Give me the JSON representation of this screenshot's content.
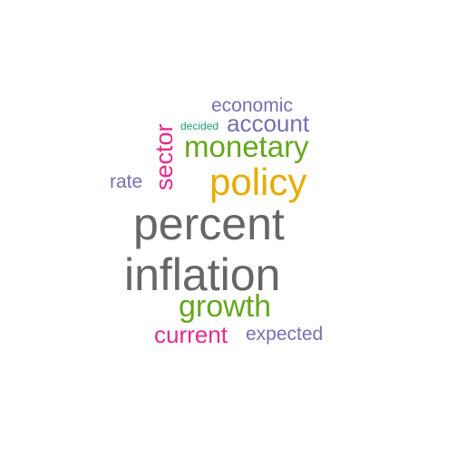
{
  "words": {
    "percent": {
      "text": "percent",
      "color": "#666666"
    },
    "inflation": {
      "text": "inflation",
      "color": "#666666"
    },
    "policy": {
      "text": "policy",
      "color": "#E6AB02"
    },
    "monetary": {
      "text": "monetary",
      "color": "#66A61E"
    },
    "growth": {
      "text": "growth",
      "color": "#66A61E"
    },
    "sector": {
      "text": "sector",
      "color": "#E7298A"
    },
    "account": {
      "text": "account",
      "color": "#7570B3"
    },
    "current": {
      "text": "current",
      "color": "#E7298A"
    },
    "expected": {
      "text": "expected",
      "color": "#7570B3"
    },
    "economic": {
      "text": "economic",
      "color": "#7570B3"
    },
    "rate": {
      "text": "rate",
      "color": "#7570B3"
    },
    "decided": {
      "text": "decided",
      "color": "#1B9E77"
    }
  }
}
